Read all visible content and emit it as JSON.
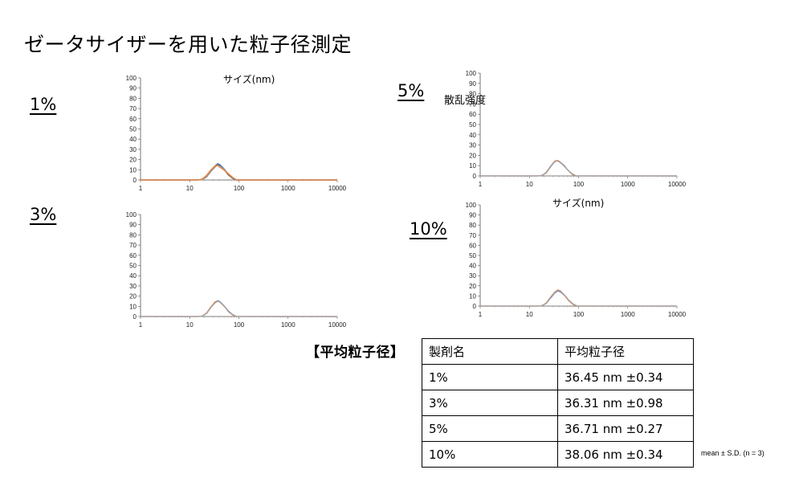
{
  "page_title": "ゼータサイザーを用いた粒子径測定",
  "panels": {
    "p1": {
      "label": "1%"
    },
    "p3": {
      "label": "3%"
    },
    "p5": {
      "label": "5%"
    },
    "p10": {
      "label": "10%"
    }
  },
  "axis_titles": {
    "x_1": "サイズ(nm)",
    "y_5": "散乱強度",
    "x_10": "サイズ(nm)"
  },
  "chart_data": [
    {
      "panel": "1%",
      "type": "line",
      "xscale": "log",
      "xlim": [
        1,
        10000
      ],
      "ylim": [
        0,
        100
      ],
      "xticks": [
        "1",
        "10",
        "100",
        "1000",
        "10000"
      ],
      "yticks": [
        "0",
        "10",
        "20",
        "30",
        "40",
        "50",
        "60",
        "70",
        "80",
        "90",
        "100"
      ],
      "xlabel": "サイズ(nm)",
      "ylabel": "",
      "series": [
        {
          "color": "#4472c4",
          "x": [
            15,
            18,
            22,
            27,
            33,
            37,
            41,
            50,
            61,
            75,
            90
          ],
          "y": [
            0,
            0.5,
            3,
            9,
            14,
            16,
            15,
            11,
            5.5,
            1.5,
            0
          ]
        },
        {
          "color": "#555555",
          "x": [
            15,
            18,
            22,
            27,
            33,
            37,
            41,
            50,
            61,
            75,
            90
          ],
          "y": [
            0,
            0.5,
            3,
            8.5,
            13,
            15,
            14,
            10,
            5,
            1.5,
            0
          ]
        },
        {
          "color": "#a5a5a5",
          "x": [
            15,
            18,
            22,
            27,
            33,
            37,
            41,
            50,
            61,
            75,
            90
          ],
          "y": [
            0,
            0.5,
            3.5,
            9,
            13.5,
            14.5,
            13.5,
            10.5,
            6,
            2,
            0
          ]
        },
        {
          "color": "#ed7d31",
          "x": [
            15,
            18,
            22,
            27,
            33,
            37,
            41,
            50,
            61,
            75,
            90
          ],
          "y": [
            0,
            1,
            4.5,
            10,
            14,
            14,
            12.5,
            9.5,
            6,
            2.5,
            0
          ]
        }
      ]
    },
    {
      "panel": "3%",
      "type": "line",
      "xscale": "log",
      "xlim": [
        1,
        10000
      ],
      "ylim": [
        0,
        100
      ],
      "xticks": [
        "1",
        "10",
        "100",
        "1000",
        "10000"
      ],
      "yticks": [
        "0",
        "10",
        "20",
        "30",
        "40",
        "50",
        "60",
        "70",
        "80",
        "90",
        "100"
      ],
      "xlabel": "",
      "ylabel": "",
      "series": [
        {
          "color": "#4472c4",
          "x": [
            15,
            18,
            22,
            27,
            33,
            37,
            41,
            50,
            61,
            75,
            90
          ],
          "y": [
            0,
            0.5,
            3,
            9,
            14,
            15.5,
            14.5,
            10.5,
            5,
            1.5,
            0
          ]
        },
        {
          "color": "#ed7d31",
          "x": [
            15,
            18,
            22,
            27,
            33,
            37,
            41,
            50,
            61,
            75,
            90
          ],
          "y": [
            0,
            0.5,
            3.5,
            9.5,
            14.5,
            15,
            14,
            10,
            5.5,
            1.5,
            0
          ]
        },
        {
          "color": "#a5a5a5",
          "x": [
            15,
            18,
            22,
            27,
            33,
            37,
            41,
            50,
            61,
            75,
            90
          ],
          "y": [
            0,
            0.5,
            3,
            9,
            13.5,
            15,
            14,
            10.5,
            5.5,
            2,
            0
          ]
        }
      ]
    },
    {
      "panel": "5%",
      "type": "line",
      "xscale": "log",
      "xlim": [
        1,
        10000
      ],
      "ylim": [
        0,
        100
      ],
      "xticks": [
        "1",
        "10",
        "100",
        "1000",
        "10000"
      ],
      "yticks": [
        "0",
        "10",
        "20",
        "30",
        "40",
        "50",
        "60",
        "70",
        "80",
        "90",
        "100"
      ],
      "xlabel": "",
      "ylabel": "散乱強度",
      "series": [
        {
          "color": "#4472c4",
          "x": [
            15,
            18,
            22,
            27,
            33,
            37,
            41,
            50,
            61,
            75,
            90
          ],
          "y": [
            0,
            0.5,
            3,
            9,
            14,
            15,
            14,
            10.5,
            5.5,
            1.5,
            0
          ]
        },
        {
          "color": "#ed7d31",
          "x": [
            15,
            18,
            22,
            27,
            33,
            37,
            41,
            50,
            61,
            75,
            90
          ],
          "y": [
            0,
            0.5,
            3,
            9.5,
            14.5,
            15,
            14,
            10,
            5.5,
            1.5,
            0
          ]
        },
        {
          "color": "#a5a5a5",
          "x": [
            15,
            18,
            22,
            27,
            33,
            37,
            41,
            50,
            61,
            75,
            90
          ],
          "y": [
            0,
            0.5,
            3.5,
            9.5,
            14,
            14.5,
            13.5,
            10,
            5.5,
            2,
            0
          ]
        }
      ]
    },
    {
      "panel": "10%",
      "type": "line",
      "xscale": "log",
      "xlim": [
        1,
        10000
      ],
      "ylim": [
        0,
        100
      ],
      "xticks": [
        "1",
        "10",
        "100",
        "1000",
        "10000"
      ],
      "yticks": [
        "0",
        "10",
        "20",
        "30",
        "40",
        "50",
        "60",
        "70",
        "80",
        "90",
        "100"
      ],
      "xlabel": "サイズ(nm)",
      "ylabel": "",
      "series": [
        {
          "color": "#4472c4",
          "x": [
            15,
            18,
            22,
            27,
            33,
            38,
            43,
            52,
            63,
            78,
            95
          ],
          "y": [
            0,
            0.5,
            2.5,
            8,
            13,
            15,
            14,
            10.5,
            5.5,
            1.5,
            0
          ]
        },
        {
          "color": "#ed7d31",
          "x": [
            15,
            18,
            22,
            27,
            33,
            38,
            43,
            52,
            63,
            78,
            95
          ],
          "y": [
            0,
            0.5,
            3,
            9,
            14,
            16,
            15,
            10.5,
            5.5,
            1.5,
            0
          ]
        },
        {
          "color": "#a5a5a5",
          "x": [
            15,
            18,
            22,
            27,
            33,
            38,
            43,
            52,
            63,
            78,
            95
          ],
          "y": [
            0,
            0.5,
            2.5,
            8.5,
            13.5,
            15.5,
            14.5,
            11,
            6,
            2,
            0
          ]
        }
      ]
    }
  ],
  "table": {
    "heading": "【平均粒子径】",
    "headers": [
      "製剤名",
      "平均粒子径"
    ],
    "rows": [
      [
        "1%",
        "36.45 nm ±0.34"
      ],
      [
        "3%",
        "36.31 nm ±0.98"
      ],
      [
        "5%",
        "36.71 nm ±0.27"
      ],
      [
        "10%",
        "38.06 nm ±0.34"
      ]
    ],
    "note": "mean ± S.D. (n = 3)"
  }
}
